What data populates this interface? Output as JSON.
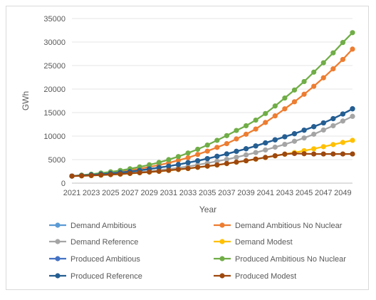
{
  "chart_data": {
    "type": "line",
    "title": "",
    "xlabel": "Year",
    "ylabel": "GWh",
    "ylim": [
      0,
      35000
    ],
    "yticks": [
      0,
      5000,
      10000,
      15000,
      20000,
      25000,
      30000,
      35000
    ],
    "grid": "horizontal",
    "legend_position": "bottom",
    "x": [
      2021,
      2022,
      2023,
      2024,
      2025,
      2026,
      2027,
      2028,
      2029,
      2030,
      2031,
      2032,
      2033,
      2034,
      2035,
      2036,
      2037,
      2038,
      2039,
      2040,
      2041,
      2042,
      2043,
      2044,
      2045,
      2046,
      2047,
      2048,
      2049,
      2050
    ],
    "xtick_labels": [
      "2021",
      "2023",
      "2025",
      "2027",
      "2029",
      "2031",
      "2033",
      "2035",
      "2037",
      "2039",
      "2041",
      "2043",
      "2045",
      "2047",
      "2049"
    ],
    "series": [
      {
        "name": "Demand Ambitious",
        "color": "#5b9bd5",
        "values": [
          1500,
          1600,
          1750,
          1900,
          2050,
          2250,
          2450,
          2700,
          3000,
          3300,
          3600,
          3950,
          4350,
          4750,
          5200,
          5700,
          6200,
          6750,
          7300,
          7900,
          8550,
          9200,
          9850,
          10500,
          11250,
          12000,
          12800,
          13700,
          14700,
          15800
        ]
      },
      {
        "name": "Demand Ambitious No Nuclear",
        "color": "#ed7d31",
        "values": [
          1500,
          1650,
          1800,
          2000,
          2200,
          2450,
          2750,
          3050,
          3450,
          3850,
          4300,
          4850,
          5400,
          6100,
          6800,
          7600,
          8400,
          9400,
          10400,
          11500,
          12900,
          14300,
          15800,
          17300,
          18900,
          20600,
          22400,
          24300,
          26300,
          28500
        ]
      },
      {
        "name": "Demand Reference",
        "color": "#a5a5a5",
        "values": [
          1500,
          1550,
          1650,
          1750,
          1850,
          2000,
          2150,
          2350,
          2550,
          2750,
          3000,
          3250,
          3550,
          3900,
          4250,
          4650,
          5050,
          5500,
          6000,
          6500,
          7050,
          7650,
          8250,
          8900,
          9600,
          10400,
          11300,
          12200,
          13200,
          14200
        ]
      },
      {
        "name": "Demand Modest",
        "color": "#ffc000",
        "values": [
          1500,
          1550,
          1600,
          1700,
          1800,
          1900,
          2050,
          2200,
          2350,
          2500,
          2700,
          2900,
          3100,
          3350,
          3600,
          3850,
          4150,
          4450,
          4750,
          5100,
          5450,
          5800,
          6150,
          6500,
          6900,
          7300,
          7750,
          8200,
          8650,
          9100
        ]
      },
      {
        "name": "Produced Ambitious",
        "color": "#4472c4",
        "values": [
          1500,
          1620,
          1760,
          1910,
          2060,
          2260,
          2460,
          2710,
          3010,
          3310,
          3610,
          3960,
          4360,
          4760,
          5210,
          5710,
          6210,
          6760,
          7310,
          7910,
          8560,
          9210,
          9860,
          10510,
          11260,
          12010,
          12810,
          13710,
          14710,
          15810
        ]
      },
      {
        "name": "Produced Ambitious No Nuclear",
        "color": "#70ad47",
        "values": [
          1500,
          1700,
          1900,
          2150,
          2400,
          2700,
          3050,
          3450,
          3900,
          4400,
          5000,
          5650,
          6400,
          7200,
          8100,
          9100,
          10100,
          11200,
          12200,
          13400,
          14800,
          16400,
          18100,
          19800,
          21600,
          23600,
          25600,
          27700,
          29900,
          32000
        ]
      },
      {
        "name": "Produced Reference",
        "color": "#255e91",
        "values": [
          1500,
          1620,
          1760,
          1910,
          2060,
          2260,
          2460,
          2710,
          3010,
          3310,
          3610,
          3960,
          4360,
          4760,
          5210,
          5710,
          6210,
          6760,
          7310,
          7910,
          8560,
          9210,
          9860,
          10510,
          11260,
          12010,
          12810,
          13710,
          14710,
          15810
        ]
      },
      {
        "name": "Produced Modest",
        "color": "#9e480e",
        "values": [
          1500,
          1560,
          1620,
          1720,
          1820,
          1920,
          2070,
          2220,
          2370,
          2520,
          2720,
          2920,
          3120,
          3370,
          3620,
          3870,
          4170,
          4470,
          4770,
          5120,
          5470,
          5820,
          6170,
          6300,
          6250,
          6200,
          6200,
          6200,
          6200,
          6200
        ]
      }
    ]
  }
}
